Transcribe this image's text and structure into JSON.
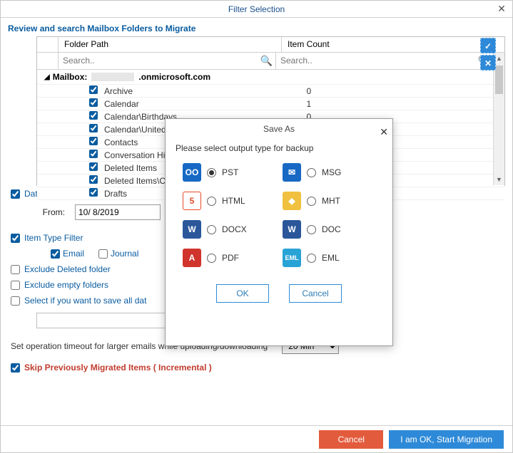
{
  "window": {
    "title": "Filter Selection"
  },
  "section_title": "Review and search Mailbox Folders to Migrate",
  "grid": {
    "headers": {
      "path": "Folder Path",
      "count": "Item Count"
    },
    "search_placeholder": "Search..",
    "mailbox_prefix": "Mailbox:",
    "mailbox_suffix": ".onmicrosoft.com",
    "rows": [
      {
        "name": "Archive",
        "count": "0",
        "checked": true
      },
      {
        "name": "Calendar",
        "count": "1",
        "checked": true
      },
      {
        "name": "Calendar\\Birthdays",
        "count": "0",
        "checked": true
      },
      {
        "name": "Calendar\\United S",
        "count": "",
        "checked": true
      },
      {
        "name": "Contacts",
        "count": "",
        "checked": true
      },
      {
        "name": "Conversation Hist",
        "count": "",
        "checked": true
      },
      {
        "name": "Deleted Items",
        "count": "",
        "checked": true
      },
      {
        "name": "Deleted Items\\Ca",
        "count": "",
        "checked": true
      },
      {
        "name": "Drafts",
        "count": "",
        "checked": true
      }
    ]
  },
  "date_filter": {
    "label": "Date Filter",
    "checked": true,
    "from_label": "From:",
    "from_value": "10/ 8/2019"
  },
  "item_type_filter": {
    "label": "Item Type Filter",
    "checked": true,
    "sub": [
      {
        "label": "Email",
        "checked": true
      },
      {
        "label": "Journal",
        "checked": false
      }
    ]
  },
  "extra_opts": [
    {
      "label": "Exclude Deleted folder",
      "checked": false
    },
    {
      "label": "Exclude empty folders",
      "checked": false
    },
    {
      "label": "Select if you want to save all dat",
      "checked": false
    }
  ],
  "timeout": {
    "label": "Set operation timeout for larger emails while uploading/downloading",
    "value": "20 Min"
  },
  "skip": {
    "label": "Skip Previously Migrated Items ( Incremental )",
    "checked": true
  },
  "buttons": {
    "cancel": "Cancel",
    "ok": "I am OK, Start Migration"
  },
  "modal": {
    "title": "Save As",
    "instruction": "Please select output type for backup",
    "formats": [
      {
        "key": "pst",
        "label": "PST",
        "icon": "ico-outlook",
        "selected": true
      },
      {
        "key": "msg",
        "label": "MSG",
        "icon": "ico-msg",
        "selected": false
      },
      {
        "key": "html",
        "label": "HTML",
        "icon": "ico-html5",
        "selected": false
      },
      {
        "key": "mht",
        "label": "MHT",
        "icon": "ico-mht",
        "selected": false
      },
      {
        "key": "docx",
        "label": "DOCX",
        "icon": "ico-docx",
        "selected": false
      },
      {
        "key": "doc",
        "label": "DOC",
        "icon": "ico-doc",
        "selected": false
      },
      {
        "key": "pdf",
        "label": "PDF",
        "icon": "ico-pdf",
        "selected": false
      },
      {
        "key": "eml",
        "label": "EML",
        "icon": "ico-eml",
        "selected": false
      }
    ],
    "ok": "OK",
    "cancel": "Cancel"
  }
}
